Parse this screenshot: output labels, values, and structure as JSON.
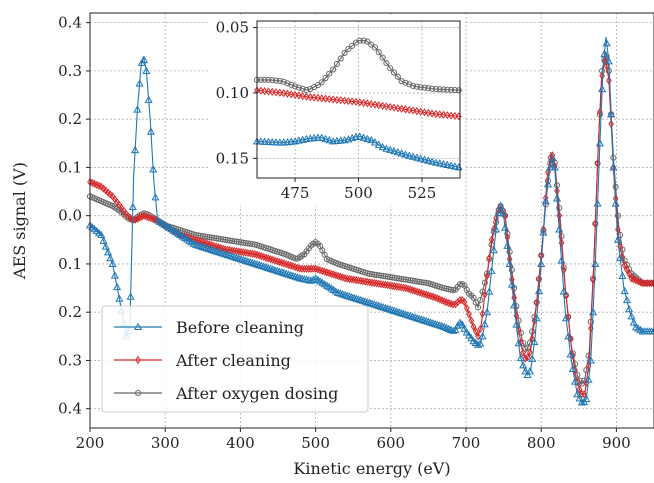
{
  "chart_data": {
    "type": "line",
    "xlabel": "Kinetic energy (eV)",
    "ylabel": "AES signal (V)",
    "xlim": [
      200,
      950
    ],
    "ylim": [
      -0.44,
      0.42
    ],
    "xticks": [
      "200",
      "300",
      "400",
      "500",
      "600",
      "700",
      "800",
      "900"
    ],
    "yticks": [
      {
        "value": 0.4,
        "label": "0.4"
      },
      {
        "value": 0.3,
        "label": "0.3"
      },
      {
        "value": 0.2,
        "label": "0.2"
      },
      {
        "value": 0.1,
        "label": "0.1"
      },
      {
        "value": 0.0,
        "label": "0.0"
      },
      {
        "value": -0.1,
        "label": "0.1"
      },
      {
        "value": -0.2,
        "label": "0.2"
      },
      {
        "value": -0.3,
        "label": "0.3"
      },
      {
        "value": -0.4,
        "label": "0.4"
      }
    ],
    "grid": true,
    "legend_position": "lower-left",
    "series": [
      {
        "name": "Before cleaning",
        "color": "#1f77b4",
        "marker": "triangle",
        "points": [
          [
            200,
            -0.02
          ],
          [
            215,
            -0.04
          ],
          [
            230,
            -0.1
          ],
          [
            240,
            -0.18
          ],
          [
            248,
            -0.25
          ],
          [
            253,
            -0.23
          ],
          [
            258,
            0.08
          ],
          [
            263,
            0.22
          ],
          [
            268,
            0.31
          ],
          [
            271,
            0.33
          ],
          [
            275,
            0.3
          ],
          [
            280,
            0.2
          ],
          [
            285,
            0.07
          ],
          [
            290,
            -0.01
          ],
          [
            300,
            -0.02
          ],
          [
            320,
            -0.04
          ],
          [
            340,
            -0.06
          ],
          [
            360,
            -0.07
          ],
          [
            380,
            -0.08
          ],
          [
            400,
            -0.09
          ],
          [
            420,
            -0.1
          ],
          [
            440,
            -0.11
          ],
          [
            460,
            -0.12
          ],
          [
            480,
            -0.13
          ],
          [
            495,
            -0.135
          ],
          [
            500,
            -0.13
          ],
          [
            510,
            -0.14
          ],
          [
            530,
            -0.16
          ],
          [
            550,
            -0.17
          ],
          [
            570,
            -0.18
          ],
          [
            590,
            -0.19
          ],
          [
            610,
            -0.2
          ],
          [
            630,
            -0.21
          ],
          [
            650,
            -0.22
          ],
          [
            670,
            -0.23
          ],
          [
            685,
            -0.24
          ],
          [
            690,
            -0.225
          ],
          [
            693,
            -0.22
          ],
          [
            700,
            -0.24
          ],
          [
            710,
            -0.26
          ],
          [
            718,
            -0.27
          ],
          [
            722,
            -0.25
          ],
          [
            728,
            -0.2
          ],
          [
            735,
            -0.1
          ],
          [
            742,
            0.0
          ],
          [
            746,
            0.02
          ],
          [
            750,
            0.0
          ],
          [
            758,
            -0.1
          ],
          [
            765,
            -0.2
          ],
          [
            772,
            -0.29
          ],
          [
            778,
            -0.32
          ],
          [
            782,
            -0.33
          ],
          [
            786,
            -0.32
          ],
          [
            792,
            -0.25
          ],
          [
            800,
            -0.1
          ],
          [
            806,
            0.03
          ],
          [
            812,
            0.1
          ],
          [
            815,
            0.12
          ],
          [
            818,
            0.1
          ],
          [
            825,
            -0.05
          ],
          [
            832,
            -0.2
          ],
          [
            840,
            -0.3
          ],
          [
            848,
            -0.37
          ],
          [
            855,
            -0.39
          ],
          [
            860,
            -0.38
          ],
          [
            866,
            -0.3
          ],
          [
            872,
            -0.1
          ],
          [
            878,
            0.15
          ],
          [
            882,
            0.3
          ],
          [
            886,
            0.37
          ],
          [
            890,
            0.32
          ],
          [
            896,
            0.1
          ],
          [
            902,
            -0.05
          ],
          [
            910,
            -0.15
          ],
          [
            918,
            -0.2
          ],
          [
            925,
            -0.23
          ],
          [
            935,
            -0.24
          ],
          [
            950,
            -0.24
          ]
        ]
      },
      {
        "name": "After cleaning",
        "color": "#d62728",
        "marker": "diamond",
        "points": [
          [
            200,
            0.07
          ],
          [
            215,
            0.06
          ],
          [
            230,
            0.04
          ],
          [
            240,
            0.02
          ],
          [
            250,
            0.0
          ],
          [
            258,
            -0.01
          ],
          [
            265,
            -0.005
          ],
          [
            272,
            0.0
          ],
          [
            280,
            -0.005
          ],
          [
            290,
            -0.01
          ],
          [
            300,
            -0.02
          ],
          [
            320,
            -0.04
          ],
          [
            340,
            -0.05
          ],
          [
            360,
            -0.06
          ],
          [
            380,
            -0.07
          ],
          [
            400,
            -0.075
          ],
          [
            420,
            -0.08
          ],
          [
            440,
            -0.09
          ],
          [
            460,
            -0.1
          ],
          [
            480,
            -0.11
          ],
          [
            500,
            -0.11
          ],
          [
            520,
            -0.12
          ],
          [
            540,
            -0.13
          ],
          [
            560,
            -0.135
          ],
          [
            580,
            -0.14
          ],
          [
            600,
            -0.145
          ],
          [
            620,
            -0.15
          ],
          [
            640,
            -0.16
          ],
          [
            660,
            -0.17
          ],
          [
            675,
            -0.18
          ],
          [
            685,
            -0.185
          ],
          [
            692,
            -0.175
          ],
          [
            697,
            -0.175
          ],
          [
            703,
            -0.2
          ],
          [
            710,
            -0.23
          ],
          [
            716,
            -0.25
          ],
          [
            720,
            -0.23
          ],
          [
            726,
            -0.15
          ],
          [
            734,
            -0.05
          ],
          [
            742,
            0.01
          ],
          [
            746,
            0.02
          ],
          [
            752,
            0.0
          ],
          [
            760,
            -0.12
          ],
          [
            768,
            -0.22
          ],
          [
            775,
            -0.28
          ],
          [
            780,
            -0.3
          ],
          [
            786,
            -0.28
          ],
          [
            794,
            -0.18
          ],
          [
            802,
            -0.05
          ],
          [
            808,
            0.08
          ],
          [
            813,
            0.13
          ],
          [
            817,
            0.12
          ],
          [
            824,
            0.0
          ],
          [
            832,
            -0.15
          ],
          [
            840,
            -0.27
          ],
          [
            847,
            -0.34
          ],
          [
            853,
            -0.37
          ],
          [
            858,
            -0.37
          ],
          [
            864,
            -0.3
          ],
          [
            870,
            -0.1
          ],
          [
            876,
            0.15
          ],
          [
            880,
            0.28
          ],
          [
            885,
            0.33
          ],
          [
            890,
            0.28
          ],
          [
            896,
            0.1
          ],
          [
            903,
            -0.05
          ],
          [
            910,
            -0.1
          ],
          [
            920,
            -0.13
          ],
          [
            935,
            -0.14
          ],
          [
            950,
            -0.14
          ]
        ]
      },
      {
        "name": "After oxygen dosing",
        "color": "#666666",
        "marker": "circle",
        "points": [
          [
            200,
            0.04
          ],
          [
            215,
            0.03
          ],
          [
            230,
            0.02
          ],
          [
            240,
            0.01
          ],
          [
            250,
            -0.005
          ],
          [
            258,
            -0.01
          ],
          [
            265,
            0.0
          ],
          [
            272,
            0.005
          ],
          [
            280,
            0.0
          ],
          [
            290,
            -0.01
          ],
          [
            300,
            -0.02
          ],
          [
            320,
            -0.03
          ],
          [
            340,
            -0.04
          ],
          [
            360,
            -0.045
          ],
          [
            380,
            -0.05
          ],
          [
            400,
            -0.055
          ],
          [
            420,
            -0.06
          ],
          [
            440,
            -0.07
          ],
          [
            460,
            -0.08
          ],
          [
            475,
            -0.09
          ],
          [
            485,
            -0.08
          ],
          [
            495,
            -0.06
          ],
          [
            500,
            -0.055
          ],
          [
            505,
            -0.06
          ],
          [
            515,
            -0.09
          ],
          [
            530,
            -0.1
          ],
          [
            550,
            -0.11
          ],
          [
            570,
            -0.12
          ],
          [
            590,
            -0.125
          ],
          [
            610,
            -0.13
          ],
          [
            630,
            -0.135
          ],
          [
            650,
            -0.14
          ],
          [
            670,
            -0.15
          ],
          [
            685,
            -0.155
          ],
          [
            693,
            -0.14
          ],
          [
            698,
            -0.145
          ],
          [
            703,
            -0.16
          ],
          [
            710,
            -0.17
          ],
          [
            716,
            -0.19
          ],
          [
            720,
            -0.17
          ],
          [
            728,
            -0.12
          ],
          [
            736,
            -0.04
          ],
          [
            742,
            0.0
          ],
          [
            746,
            0.02
          ],
          [
            752,
            0.0
          ],
          [
            760,
            -0.1
          ],
          [
            768,
            -0.2
          ],
          [
            775,
            -0.26
          ],
          [
            780,
            -0.28
          ],
          [
            786,
            -0.26
          ],
          [
            794,
            -0.18
          ],
          [
            802,
            -0.05
          ],
          [
            808,
            0.06
          ],
          [
            813,
            0.12
          ],
          [
            818,
            0.11
          ],
          [
            825,
            0.0
          ],
          [
            832,
            -0.15
          ],
          [
            840,
            -0.27
          ],
          [
            848,
            -0.33
          ],
          [
            853,
            -0.35
          ],
          [
            858,
            -0.34
          ],
          [
            864,
            -0.28
          ],
          [
            870,
            -0.1
          ],
          [
            876,
            0.15
          ],
          [
            881,
            0.3
          ],
          [
            886,
            0.34
          ],
          [
            890,
            0.3
          ],
          [
            896,
            0.12
          ],
          [
            903,
            -0.02
          ],
          [
            910,
            -0.09
          ],
          [
            920,
            -0.12
          ],
          [
            935,
            -0.14
          ],
          [
            950,
            -0.14
          ]
        ]
      }
    ],
    "inset": {
      "xlim": [
        460,
        540
      ],
      "ylim": [
        -0.165,
        -0.045
      ],
      "xticks": [
        "475",
        "500",
        "525"
      ],
      "yticks": [
        {
          "value": -0.05,
          "label": "0.05"
        },
        {
          "value": -0.1,
          "label": "0.10"
        },
        {
          "value": -0.15,
          "label": "0.15"
        }
      ],
      "series": [
        {
          "name": "Before cleaning",
          "points": [
            [
              460,
              -0.137
            ],
            [
              470,
              -0.138
            ],
            [
              475,
              -0.137
            ],
            [
              480,
              -0.135
            ],
            [
              485,
              -0.134
            ],
            [
              490,
              -0.137
            ],
            [
              495,
              -0.136
            ],
            [
              500,
              -0.133
            ],
            [
              505,
              -0.136
            ],
            [
              510,
              -0.142
            ],
            [
              520,
              -0.148
            ],
            [
              530,
              -0.153
            ],
            [
              540,
              -0.157
            ]
          ]
        },
        {
          "name": "After cleaning",
          "points": [
            [
              460,
              -0.098
            ],
            [
              470,
              -0.1
            ],
            [
              480,
              -0.103
            ],
            [
              490,
              -0.105
            ],
            [
              500,
              -0.107
            ],
            [
              510,
              -0.11
            ],
            [
              520,
              -0.113
            ],
            [
              530,
              -0.116
            ],
            [
              540,
              -0.118
            ]
          ]
        },
        {
          "name": "After oxygen dosing",
          "points": [
            [
              460,
              -0.09
            ],
            [
              465,
              -0.09
            ],
            [
              470,
              -0.091
            ],
            [
              475,
              -0.095
            ],
            [
              480,
              -0.098
            ],
            [
              485,
              -0.093
            ],
            [
              490,
              -0.082
            ],
            [
              495,
              -0.068
            ],
            [
              500,
              -0.06
            ],
            [
              503,
              -0.06
            ],
            [
              507,
              -0.066
            ],
            [
              512,
              -0.08
            ],
            [
              517,
              -0.091
            ],
            [
              522,
              -0.095
            ],
            [
              530,
              -0.097
            ],
            [
              540,
              -0.098
            ]
          ]
        }
      ]
    }
  }
}
